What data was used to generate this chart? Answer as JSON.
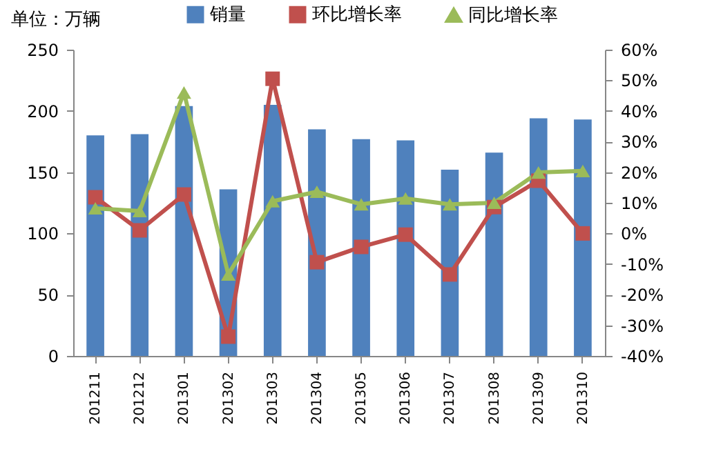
{
  "chart_data": {
    "type": "bar",
    "annotations": [
      "单位：万辆"
    ],
    "categories": [
      "201211",
      "201212",
      "201301",
      "201302",
      "201303",
      "201304",
      "201305",
      "201306",
      "201307",
      "201308",
      "201309",
      "201310"
    ],
    "series": [
      {
        "name": "销量",
        "color": "#4f81bd",
        "values": [
          180,
          181,
          204,
          136,
          205,
          185,
          177,
          176,
          152,
          166,
          194,
          193
        ]
      },
      {
        "name": "环比增长率",
        "type": "line",
        "axis": "y2",
        "marker": "square",
        "color": "#c0504d",
        "values": [
          11.8,
          1,
          12.7,
          -33.7,
          50.5,
          -9.4,
          -4.4,
          -0.4,
          -13.4,
          8.6,
          17.2,
          0
        ]
      },
      {
        "name": "同比增长率",
        "type": "line",
        "axis": "y2",
        "marker": "triangle",
        "color": "#9bbb59",
        "values": [
          8.2,
          7.3,
          46,
          -13.4,
          10.5,
          13.6,
          9.5,
          11.4,
          9.5,
          10,
          19.9,
          20.4
        ]
      }
    ],
    "ylim": [
      0,
      250
    ],
    "yticks": [
      0,
      50,
      100,
      150,
      200,
      250
    ],
    "y2lim": [
      -40,
      60
    ],
    "y2ticks": [
      {
        "value": -40,
        "label": "-40%"
      },
      {
        "value": -30,
        "label": "-30%"
      },
      {
        "value": -20,
        "label": "-20%"
      },
      {
        "value": -10,
        "label": "-10%"
      },
      {
        "value": 0,
        "label": "0%"
      },
      {
        "value": 10,
        "label": "10%"
      },
      {
        "value": 20,
        "label": "20%"
      },
      {
        "value": 30,
        "label": "30%"
      },
      {
        "value": 40,
        "label": "40%"
      },
      {
        "value": 50,
        "label": "50%"
      },
      {
        "value": 60,
        "label": "60%"
      }
    ],
    "grid": false,
    "legend": "top",
    "line_style": "solid"
  }
}
